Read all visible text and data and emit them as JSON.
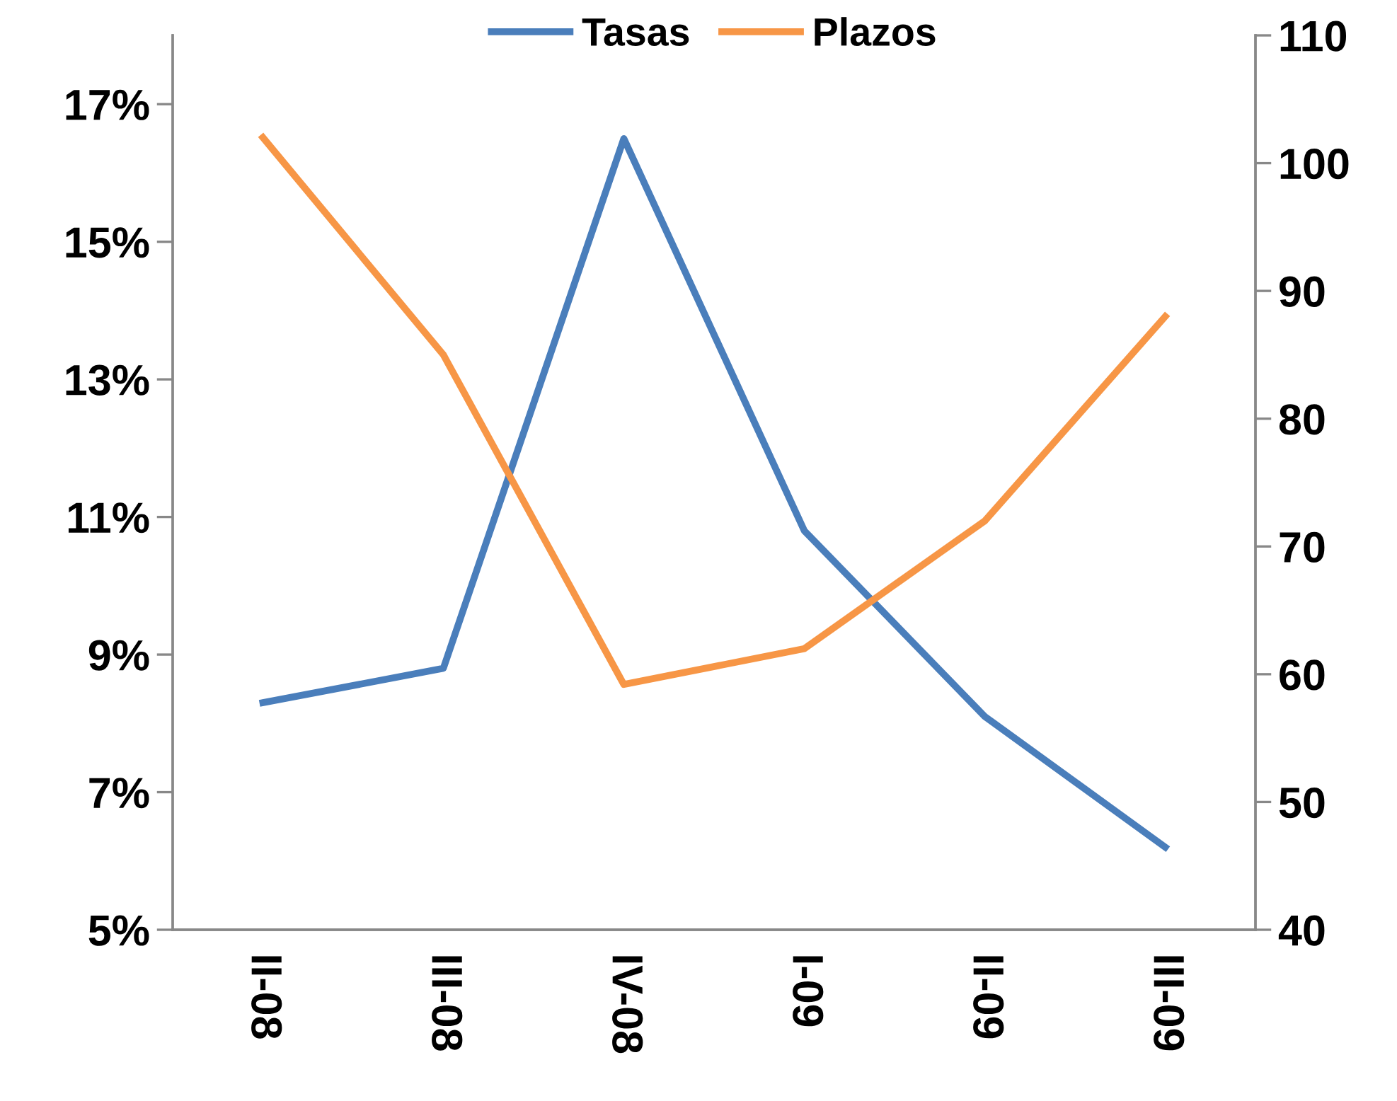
{
  "chart_data": {
    "type": "line",
    "categories": [
      "II-08",
      "III-08",
      "IV-08",
      "I-09",
      "II-09",
      "III-09"
    ],
    "series": [
      {
        "name": "Tasas",
        "color": "#4a7ebb",
        "values": [
          8.3,
          8.8,
          16.5,
          10.8,
          8.1,
          6.2
        ]
      },
      {
        "name": "Plazos",
        "color": "#f79646",
        "axis": "y2",
        "values": [
          102,
          85,
          59.2,
          62,
          72,
          88
        ]
      }
    ],
    "ylim": [
      5,
      18
    ],
    "yticks": [
      {
        "value": 5,
        "label": "5%"
      },
      {
        "value": 7,
        "label": "7%"
      },
      {
        "value": 9,
        "label": "9%"
      },
      {
        "value": 11,
        "label": "11%"
      },
      {
        "value": 13,
        "label": "13%"
      },
      {
        "value": 15,
        "label": "15%"
      },
      {
        "value": 17,
        "label": "17%"
      }
    ],
    "y2lim": [
      40,
      110
    ],
    "y2ticks": [
      40,
      50,
      60,
      70,
      80,
      90,
      100,
      110
    ],
    "grid": false,
    "legend": "top",
    "marker": "none",
    "line_style": "solid"
  }
}
